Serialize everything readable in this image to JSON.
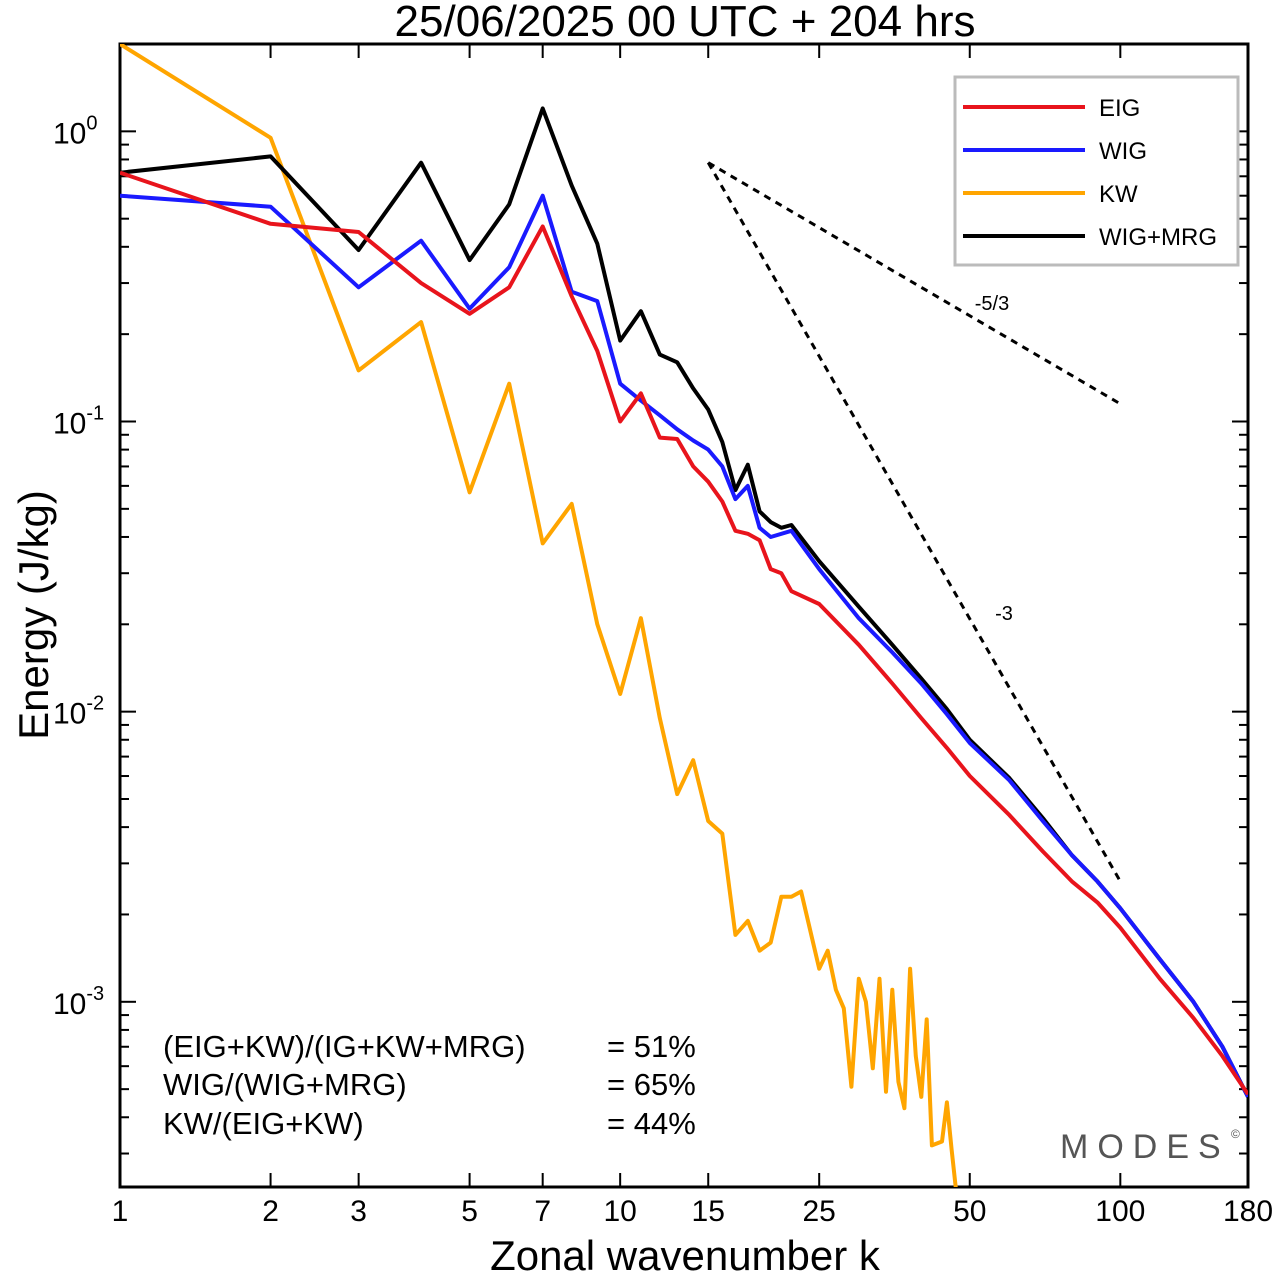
{
  "chart_data": {
    "type": "line",
    "title": "25/06/2025  00 UTC  + 204 hrs",
    "xlabel": "Zonal wavenumber k",
    "ylabel": "Energy (J/kg)",
    "x_scale": "log",
    "y_scale": "log",
    "xlim": [
      1,
      180
    ],
    "ylim": [
      0.00023,
      2.0
    ],
    "x_tick_labels": [
      "1",
      "2",
      "3",
      "5",
      "7",
      "10",
      "15",
      "25",
      "50",
      "100",
      "180"
    ],
    "x_tick_values": [
      1,
      2,
      3,
      5,
      7,
      10,
      15,
      25,
      50,
      100,
      180
    ],
    "y_ticks": [
      {
        "base": "10",
        "exp": "0",
        "value": 1
      },
      {
        "base": "10",
        "exp": "-1",
        "value": 0.1
      },
      {
        "base": "10",
        "exp": "-2",
        "value": 0.01
      },
      {
        "base": "10",
        "exp": "-3",
        "value": 0.001
      }
    ],
    "legend_position": "top-right",
    "series": [
      {
        "name": "EIG",
        "color": "#e8141c",
        "points": [
          [
            1,
            0.72
          ],
          [
            2,
            0.48
          ],
          [
            3,
            0.45
          ],
          [
            4,
            0.3
          ],
          [
            5,
            0.235
          ],
          [
            6,
            0.29
          ],
          [
            7,
            0.47
          ],
          [
            8,
            0.27
          ],
          [
            9,
            0.175
          ],
          [
            10,
            0.1
          ],
          [
            11,
            0.125
          ],
          [
            12,
            0.088
          ],
          [
            13,
            0.087
          ],
          [
            14,
            0.07
          ],
          [
            15,
            0.062
          ],
          [
            16,
            0.053
          ],
          [
            17,
            0.042
          ],
          [
            18,
            0.041
          ],
          [
            19,
            0.039
          ],
          [
            20,
            0.031
          ],
          [
            21,
            0.03
          ],
          [
            22,
            0.026
          ],
          [
            25,
            0.0235
          ],
          [
            30,
            0.017
          ],
          [
            35,
            0.0125
          ],
          [
            40,
            0.0095
          ],
          [
            45,
            0.0075
          ],
          [
            50,
            0.006
          ],
          [
            60,
            0.0044
          ],
          [
            70,
            0.0033
          ],
          [
            80,
            0.0026
          ],
          [
            90,
            0.0022
          ],
          [
            100,
            0.0018
          ],
          [
            120,
            0.0012
          ],
          [
            140,
            0.00088
          ],
          [
            160,
            0.00065
          ],
          [
            180,
            0.00048
          ]
        ]
      },
      {
        "name": "WIG",
        "color": "#1a1aff",
        "points": [
          [
            1,
            0.6
          ],
          [
            2,
            0.55
          ],
          [
            3,
            0.29
          ],
          [
            4,
            0.42
          ],
          [
            5,
            0.245
          ],
          [
            6,
            0.34
          ],
          [
            7,
            0.6
          ],
          [
            8,
            0.28
          ],
          [
            9,
            0.26
          ],
          [
            10,
            0.135
          ],
          [
            11,
            0.118
          ],
          [
            12,
            0.105
          ],
          [
            13,
            0.094
          ],
          [
            14,
            0.086
          ],
          [
            15,
            0.08
          ],
          [
            16,
            0.07
          ],
          [
            17,
            0.054
          ],
          [
            18,
            0.06
          ],
          [
            19,
            0.043
          ],
          [
            20,
            0.04
          ],
          [
            22,
            0.042
          ],
          [
            25,
            0.031
          ],
          [
            30,
            0.021
          ],
          [
            35,
            0.016
          ],
          [
            40,
            0.0125
          ],
          [
            45,
            0.0098
          ],
          [
            50,
            0.0078
          ],
          [
            60,
            0.0058
          ],
          [
            70,
            0.0042
          ],
          [
            80,
            0.0032
          ],
          [
            90,
            0.0026
          ],
          [
            100,
            0.0021
          ],
          [
            120,
            0.0014
          ],
          [
            140,
            0.001
          ],
          [
            160,
            0.0007
          ],
          [
            180,
            0.00047
          ]
        ]
      },
      {
        "name": "KW",
        "color": "#ffa500",
        "points": [
          [
            1,
            2.0
          ],
          [
            2,
            0.95
          ],
          [
            3,
            0.15
          ],
          [
            4,
            0.22
          ],
          [
            5,
            0.057
          ],
          [
            6,
            0.135
          ],
          [
            7,
            0.038
          ],
          [
            8,
            0.052
          ],
          [
            9,
            0.02
          ],
          [
            10,
            0.0115
          ],
          [
            11,
            0.021
          ],
          [
            12,
            0.0095
          ],
          [
            13,
            0.0052
          ],
          [
            14,
            0.0068
          ],
          [
            15,
            0.0042
          ],
          [
            16,
            0.0038
          ],
          [
            17,
            0.0017
          ],
          [
            18,
            0.0019
          ],
          [
            19,
            0.0015
          ],
          [
            20,
            0.0016
          ],
          [
            21,
            0.0023
          ],
          [
            22,
            0.0023
          ],
          [
            23,
            0.0024
          ],
          [
            25,
            0.0013
          ],
          [
            26,
            0.0015
          ],
          [
            27,
            0.0011
          ],
          [
            28,
            0.00095
          ],
          [
            29,
            0.00051
          ],
          [
            30,
            0.0012
          ],
          [
            31,
            0.001
          ],
          [
            32,
            0.00059
          ],
          [
            33,
            0.0012
          ],
          [
            34,
            0.00049
          ],
          [
            35,
            0.0011
          ],
          [
            36,
            0.00053
          ],
          [
            37,
            0.00043
          ],
          [
            38,
            0.0013
          ],
          [
            39,
            0.00065
          ],
          [
            40,
            0.00047
          ],
          [
            41,
            0.00087
          ],
          [
            42,
            0.00032
          ],
          [
            44,
            0.00033
          ],
          [
            45,
            0.00045
          ],
          [
            46,
            0.00031
          ],
          [
            47,
            0.00022
          ]
        ]
      },
      {
        "name": "WIG+MRG",
        "color": "#000000",
        "points": [
          [
            1,
            0.72
          ],
          [
            2,
            0.82
          ],
          [
            3,
            0.39
          ],
          [
            4,
            0.78
          ],
          [
            5,
            0.36
          ],
          [
            6,
            0.56
          ],
          [
            7,
            1.2
          ],
          [
            8,
            0.65
          ],
          [
            9,
            0.41
          ],
          [
            10,
            0.19
          ],
          [
            11,
            0.24
          ],
          [
            12,
            0.17
          ],
          [
            13,
            0.16
          ],
          [
            14,
            0.13
          ],
          [
            15,
            0.11
          ],
          [
            16,
            0.085
          ],
          [
            17,
            0.058
          ],
          [
            18,
            0.071
          ],
          [
            19,
            0.049
          ],
          [
            20,
            0.045
          ],
          [
            21,
            0.043
          ],
          [
            22,
            0.044
          ],
          [
            25,
            0.033
          ],
          [
            30,
            0.023
          ],
          [
            35,
            0.017
          ],
          [
            40,
            0.013
          ],
          [
            45,
            0.0102
          ],
          [
            50,
            0.008
          ],
          [
            60,
            0.0059
          ],
          [
            70,
            0.0043
          ],
          [
            80,
            0.0032
          ],
          [
            90,
            0.0026
          ],
          [
            100,
            0.0021
          ],
          [
            120,
            0.0014
          ],
          [
            140,
            0.001
          ],
          [
            160,
            0.0007
          ],
          [
            180,
            0.00047
          ]
        ]
      }
    ],
    "reference_lines": [
      {
        "label": "-5/3",
        "from": [
          15,
          0.78
        ],
        "to": [
          100,
          0.115
        ]
      },
      {
        "label": "-3",
        "from": [
          15,
          0.78
        ],
        "to": [
          100,
          0.0026
        ]
      }
    ],
    "annotations": {
      "stats": [
        {
          "label": "(EIG+KW)/(IG+KW+MRG)",
          "value": "= 51%"
        },
        {
          "label": "WIG/(WIG+MRG)",
          "value": "= 65%"
        },
        {
          "label": "KW/(EIG+KW)",
          "value": "= 44%"
        }
      ],
      "brand": "MODES",
      "brand_mark": "©"
    }
  }
}
